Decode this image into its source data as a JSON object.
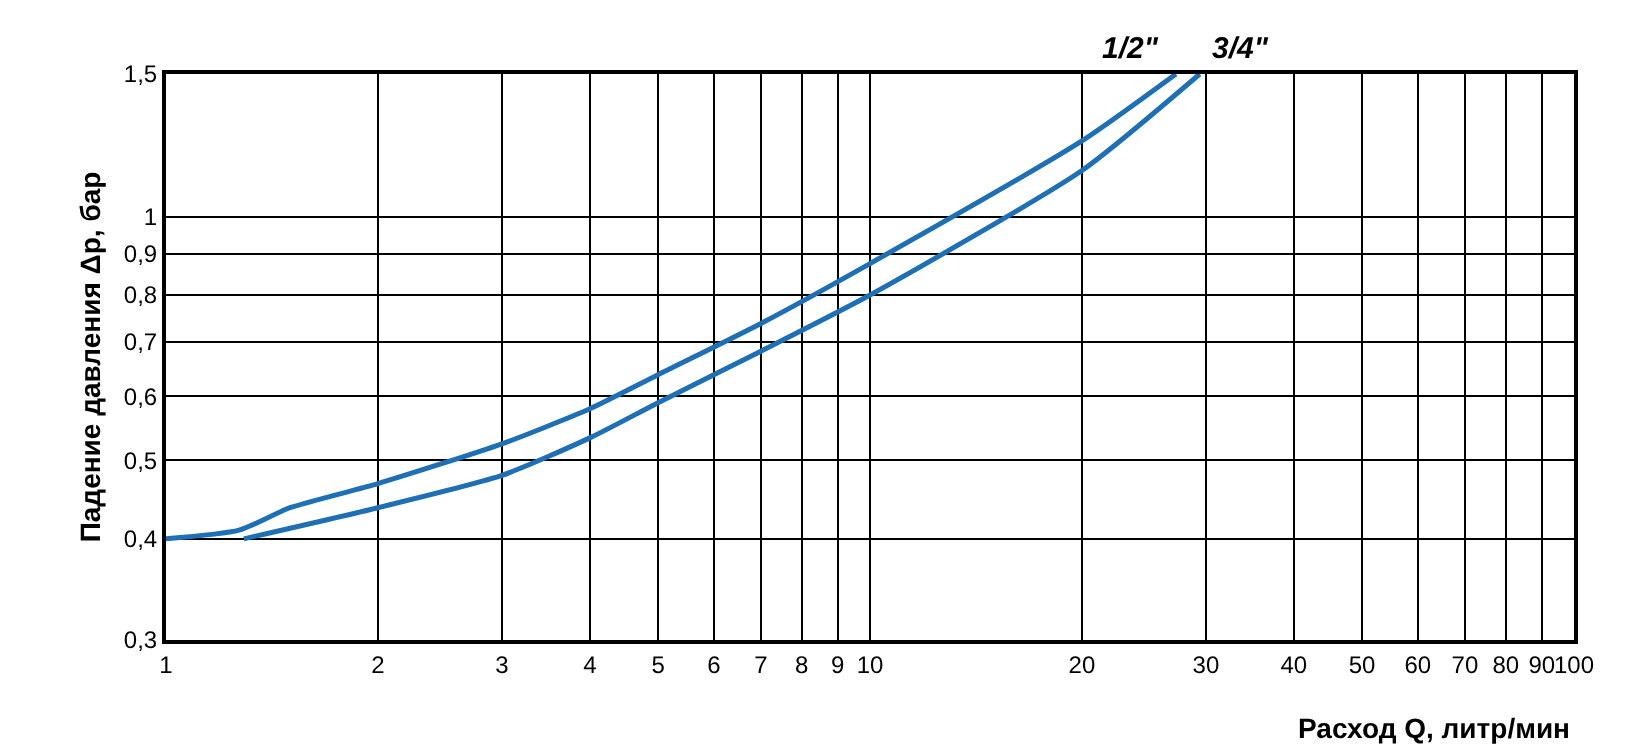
{
  "chart_data": {
    "type": "line",
    "xlabel": "Расход Q, литр/мин",
    "ylabel": "Падение давления Δp, бар",
    "log": "xy",
    "grid": true,
    "legend": false,
    "marker": "none",
    "line_style": "solid",
    "xlim": [
      1,
      100
    ],
    "ylim": [
      0.3,
      1.5
    ],
    "xticks": [
      1,
      2,
      3,
      4,
      5,
      6,
      7,
      8,
      9,
      10,
      20,
      30,
      40,
      50,
      60,
      70,
      80,
      90,
      100
    ],
    "yticks": [
      {
        "value": 0.3,
        "label": "0,3"
      },
      {
        "value": 0.4,
        "label": "0,4"
      },
      {
        "value": 0.5,
        "label": "0,5"
      },
      {
        "value": 0.6,
        "label": "0,6"
      },
      {
        "value": 0.7,
        "label": "0,7"
      },
      {
        "value": 0.8,
        "label": "0,8"
      },
      {
        "value": 0.9,
        "label": "0,9"
      },
      1,
      {
        "value": 1.5,
        "label": "1,5"
      }
    ],
    "series": [
      {
        "name": "1/2\"",
        "color": "#1f6fb5",
        "x": [
          1,
          1.27,
          1.5,
          2,
          3,
          4,
          5,
          7,
          10,
          20,
          27.2
        ],
        "values": [
          0.4,
          0.41,
          0.437,
          0.468,
          0.524,
          0.579,
          0.638,
          0.738,
          0.875,
          1.24,
          1.5
        ]
      },
      {
        "name": "3/4\"",
        "color": "#1f6fb5",
        "x": [
          1.29,
          2,
          3,
          4,
          5,
          7,
          10,
          20,
          29.4
        ],
        "values": [
          0.4,
          0.437,
          0.479,
          0.533,
          0.589,
          0.682,
          0.8,
          1.14,
          1.5
        ]
      }
    ]
  }
}
